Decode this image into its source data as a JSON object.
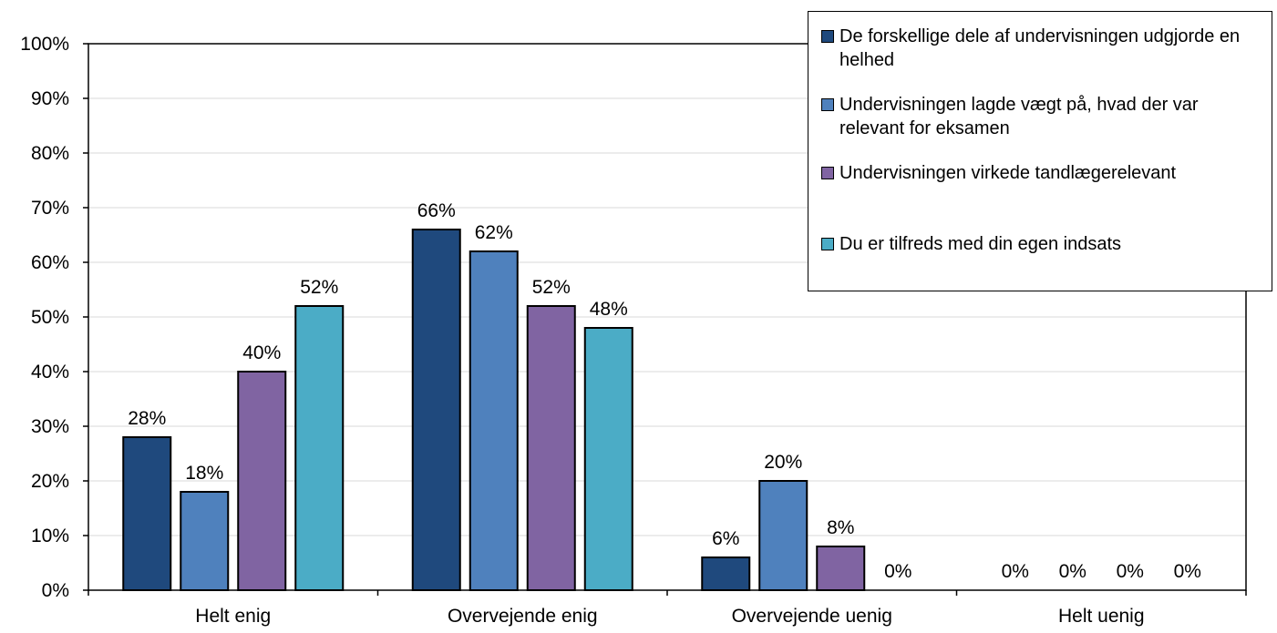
{
  "chart_data": {
    "type": "bar",
    "categories": [
      "Helt enig",
      "Overvejende enig",
      "Overvejende uenig",
      "Helt uenig"
    ],
    "series": [
      {
        "name": "De forskellige dele af undervisningen udgjorde en helhed",
        "color": "#1f497d",
        "values": [
          28,
          66,
          6,
          0
        ],
        "labels": [
          "28%",
          "66%",
          "6%",
          "0%"
        ]
      },
      {
        "name": "Undervisningen lagde vægt på, hvad der var relevant for eksamen",
        "color": "#4f81bd",
        "values": [
          18,
          62,
          20,
          0
        ],
        "labels": [
          "18%",
          "62%",
          "20%",
          "0%"
        ]
      },
      {
        "name": "Undervisningen virkede tandlægerelevant",
        "color": "#8064a2",
        "values": [
          40,
          52,
          8,
          0
        ],
        "labels": [
          "40%",
          "52%",
          "8%",
          "0%"
        ]
      },
      {
        "name": "Du er tilfreds med din egen indsats",
        "color": "#4bacc6",
        "values": [
          52,
          48,
          0,
          0
        ],
        "labels": [
          "52%",
          "48%",
          "0%",
          "0%"
        ]
      }
    ],
    "ylim": [
      0,
      100
    ],
    "yticks": [
      0,
      10,
      20,
      30,
      40,
      50,
      60,
      70,
      80,
      90,
      100
    ],
    "ytick_labels": [
      "0%",
      "10%",
      "20%",
      "30%",
      "40%",
      "50%",
      "60%",
      "70%",
      "80%",
      "90%",
      "100%"
    ],
    "grid": true,
    "legend_position": "top-right"
  }
}
